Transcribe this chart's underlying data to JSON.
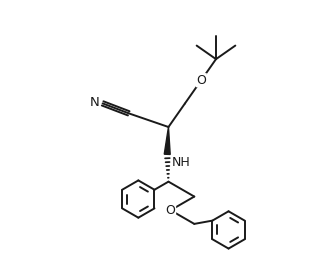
{
  "bg_color": "#ffffff",
  "line_color": "#1a1a1a",
  "lw": 1.4,
  "figsize": [
    3.27,
    2.54
  ],
  "dpi": 100,
  "xlim": [
    0,
    10
  ],
  "ylim": [
    0,
    10
  ]
}
